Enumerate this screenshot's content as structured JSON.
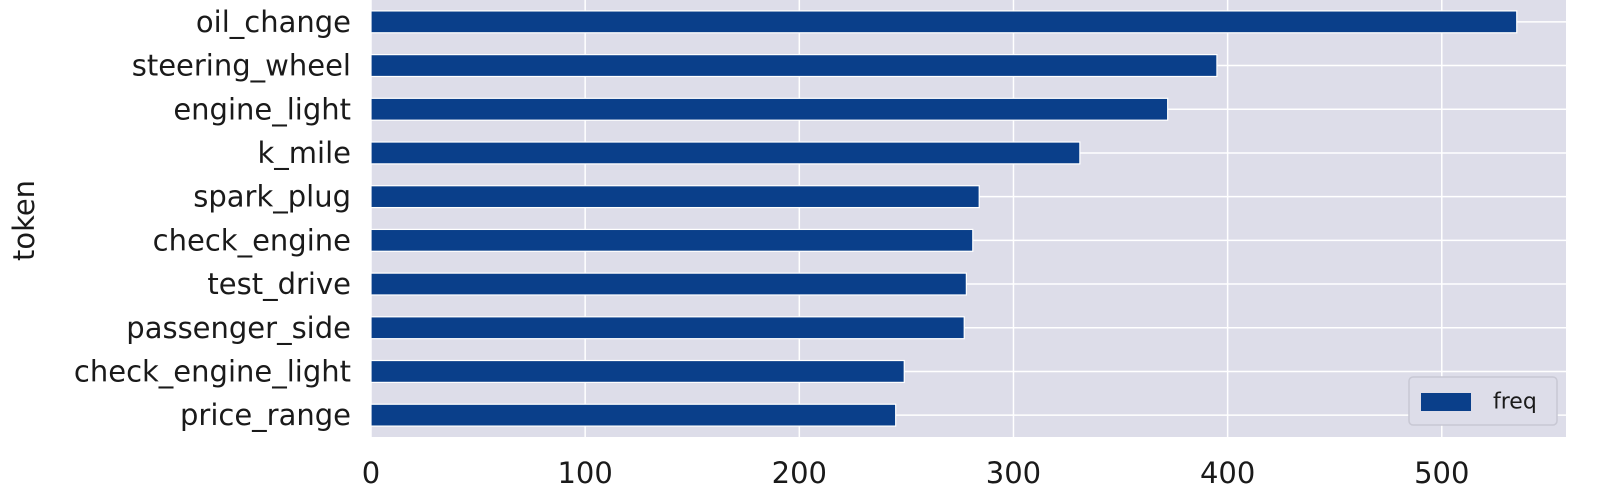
{
  "chart_data": {
    "type": "bar",
    "orientation": "horizontal",
    "title": "",
    "xlabel": "",
    "ylabel": "token",
    "categories": [
      "price_range",
      "check_engine_light",
      "passenger_side",
      "test_drive",
      "check_engine",
      "spark_plug",
      "k_mile",
      "engine_light",
      "steering_wheel",
      "oil_change"
    ],
    "series": [
      {
        "name": "freq",
        "values": [
          245,
          249,
          277,
          278,
          281,
          284,
          331,
          372,
          395,
          535
        ]
      }
    ],
    "xlim": [
      0,
      558
    ],
    "xticks": [
      0,
      100,
      200,
      300,
      400,
      500
    ],
    "grid": true,
    "legend": "bottom-right",
    "colors": {
      "bar": "#0a3f8a",
      "background": "#dddde9",
      "grid": "#ffffff"
    }
  }
}
